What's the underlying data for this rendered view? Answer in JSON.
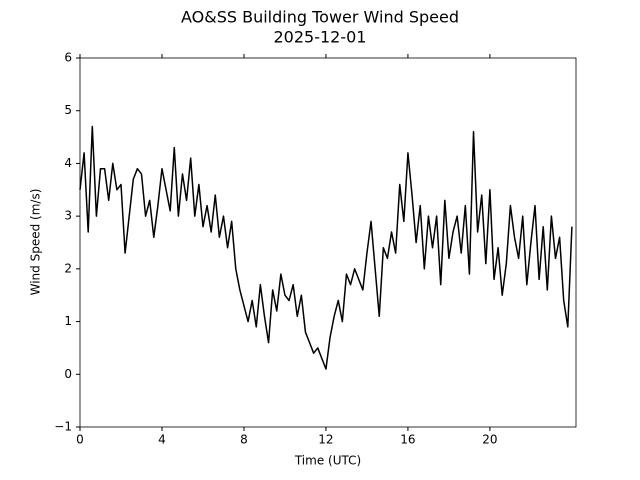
{
  "chart_data": {
    "type": "line",
    "title": "AO&SS Building Tower Wind Speed",
    "subtitle": "2025-12-01",
    "x_label": "Time (UTC)",
    "y_label": "Wind Speed (m/s)",
    "color": "#000000",
    "x": [
      0,
      0.2,
      0.4,
      0.6,
      0.8,
      1,
      1.2,
      1.4,
      1.6,
      1.8,
      2,
      2.2,
      2.4,
      2.6,
      2.8,
      3,
      3.2,
      3.4,
      3.6,
      3.8,
      4,
      4.2,
      4.4,
      4.6,
      4.8,
      5,
      5.2,
      5.4,
      5.6,
      5.8,
      6,
      6.2,
      6.4,
      6.6,
      6.8,
      7,
      7.2,
      7.4,
      7.6,
      7.8,
      8,
      8.2,
      8.4,
      8.6,
      8.8,
      9,
      9.2,
      9.4,
      9.6,
      9.8,
      10,
      10.2,
      10.4,
      10.6,
      10.8,
      11,
      11.2,
      11.4,
      11.6,
      11.8,
      12,
      12.2,
      12.4,
      12.6,
      12.8,
      13,
      13.2,
      13.4,
      13.6,
      13.8,
      14,
      14.2,
      14.4,
      14.6,
      14.8,
      15,
      15.2,
      15.4,
      15.6,
      15.8,
      16,
      16.2,
      16.4,
      16.6,
      16.8,
      17,
      17.2,
      17.4,
      17.6,
      17.8,
      18,
      18.2,
      18.4,
      18.6,
      18.8,
      19,
      19.2,
      19.4,
      19.6,
      19.8,
      20,
      20.2,
      20.4,
      20.6,
      20.8,
      21,
      21.2,
      21.4,
      21.6,
      21.8,
      22,
      22.2,
      22.4,
      22.6,
      22.8,
      23,
      23.2,
      23.4,
      23.6,
      23.8,
      24
    ],
    "values": [
      3.5,
      4.2,
      2.7,
      4.7,
      3.0,
      3.9,
      3.9,
      3.3,
      4.0,
      3.5,
      3.6,
      2.3,
      3.0,
      3.7,
      3.9,
      3.8,
      3.0,
      3.3,
      2.6,
      3.2,
      3.9,
      3.5,
      3.1,
      4.3,
      3.0,
      3.8,
      3.3,
      4.1,
      3.0,
      3.6,
      2.8,
      3.2,
      2.7,
      3.4,
      2.6,
      3.0,
      2.4,
      2.9,
      2.0,
      1.6,
      1.3,
      1.0,
      1.4,
      0.9,
      1.7,
      1.1,
      0.6,
      1.6,
      1.2,
      1.9,
      1.5,
      1.4,
      1.7,
      1.1,
      1.5,
      0.8,
      0.6,
      0.4,
      0.5,
      0.3,
      0.1,
      0.7,
      1.1,
      1.4,
      1.0,
      1.9,
      1.7,
      2.0,
      1.8,
      1.6,
      2.3,
      2.9,
      2.0,
      1.1,
      2.4,
      2.2,
      2.7,
      2.3,
      3.6,
      2.9,
      4.2,
      3.4,
      2.5,
      3.2,
      2.0,
      3.0,
      2.4,
      3.0,
      1.7,
      3.3,
      2.2,
      2.7,
      3.0,
      2.3,
      3.2,
      1.9,
      4.6,
      2.7,
      3.4,
      2.1,
      3.5,
      1.8,
      2.4,
      1.5,
      2.1,
      3.2,
      2.6,
      2.2,
      3.0,
      1.7,
      2.5,
      3.2,
      1.8,
      2.8,
      1.6,
      3.0,
      2.2,
      2.6,
      1.4,
      0.9,
      2.8
    ],
    "xlim": [
      0,
      24.2
    ],
    "xticks": [
      0,
      4,
      8,
      12,
      16,
      20
    ],
    "ylim": [
      -1,
      6
    ],
    "yticks": [
      {
        "value": -1,
        "label": "−1"
      },
      0,
      1,
      2,
      3,
      4,
      5,
      6
    ]
  }
}
